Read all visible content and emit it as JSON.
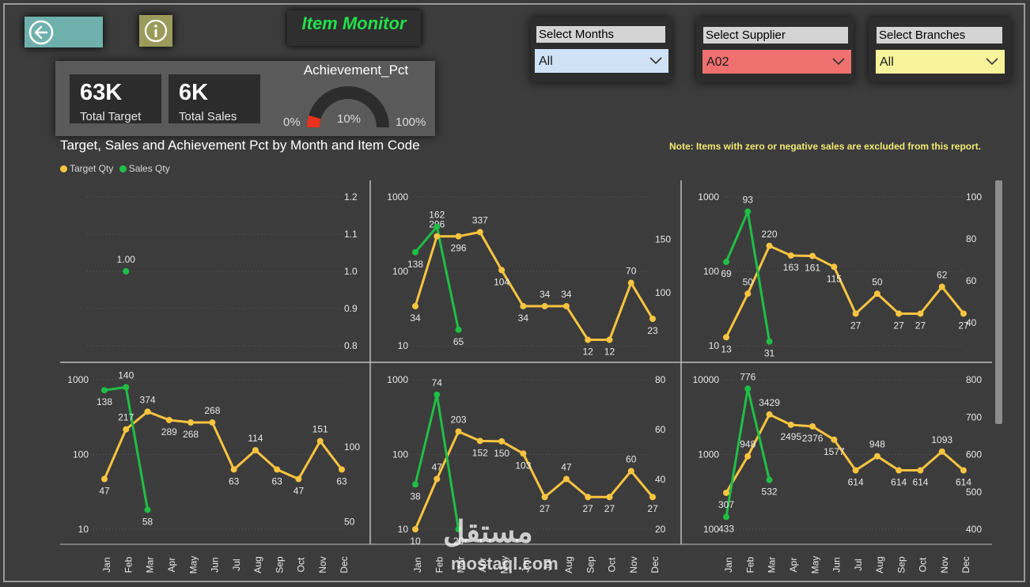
{
  "header": {
    "title": "Item Monitor",
    "back_icon": "back-arrow-icon",
    "info_icon": "info-icon"
  },
  "kpis": {
    "target_value": "63K",
    "target_label": "Total Target",
    "sales_value": "6K",
    "sales_label": "Total Sales"
  },
  "gauge": {
    "title": "Achievement_Pct",
    "min_label": "0%",
    "max_label": "100%",
    "value_label": "10%",
    "value": 0.0951
  },
  "slicers": {
    "months": {
      "label": "Select Months",
      "value": "All",
      "color": "#cfe2f6"
    },
    "supplier": {
      "label": "Select Supplier",
      "value": "A02",
      "color": "#f07070"
    },
    "branches": {
      "label": "Select Branches",
      "value": "All",
      "color": "#f7f39a"
    }
  },
  "chart_title": "Target, Sales and Achievement Pct by Month and Item Code",
  "note": "Note: Items with zero or negative sales are excluded from this report.",
  "legend": {
    "target": {
      "label": "Target Qty",
      "color": "#f9c440"
    },
    "sales": {
      "label": "Sales Qty",
      "color": "#1fbf45"
    }
  },
  "watermark": {
    "arabic": "مستقل",
    "latin": "mostaql.com"
  },
  "chart_data": {
    "type": "line",
    "months": [
      "Jan",
      "Feb",
      "Mar",
      "Apr",
      "May",
      "Jun",
      "Jul",
      "Aug",
      "Sep",
      "Oct",
      "Nov",
      "Dec"
    ],
    "panels": [
      {
        "left_axis": {
          "scale": "log",
          "ticks": []
        },
        "right_axis": {
          "scale": "linear",
          "min": 0.8,
          "max": 1.2,
          "ticks": [
            "0.8",
            "0.9",
            "1.0",
            "1.1",
            "1.2"
          ]
        },
        "target": [
          null,
          null,
          null,
          null,
          null,
          null,
          null,
          null,
          null,
          null,
          null,
          null
        ],
        "sales": [
          null,
          1.0,
          null,
          null,
          null,
          null,
          null,
          null,
          null,
          null,
          null,
          null
        ],
        "sales_labels": [
          null,
          "1.00",
          null,
          null,
          null,
          null,
          null,
          null,
          null,
          null,
          null,
          null
        ],
        "show_months": false
      },
      {
        "left_axis": {
          "scale": "log",
          "min": 10,
          "max": 1000,
          "ticks": [
            "10",
            "100",
            "1000"
          ]
        },
        "right_axis": {
          "scale": "linear",
          "min": 50,
          "max": 190,
          "ticks": [
            "100",
            "150"
          ]
        },
        "target": [
          34,
          296,
          296,
          337,
          104,
          34,
          34,
          34,
          12,
          12,
          70,
          23
        ],
        "target_labels": [
          "34",
          "296",
          "296",
          "337",
          "104",
          "34",
          "34",
          "34",
          "12",
          "12",
          "70",
          "23"
        ],
        "sales": [
          138,
          162,
          65,
          null,
          null,
          null,
          null,
          null,
          null,
          null,
          null,
          null
        ],
        "sales_labels": [
          "138",
          "162",
          "65",
          null,
          null,
          null,
          null,
          null,
          null,
          null,
          null,
          null
        ],
        "show_months": false
      },
      {
        "left_axis": {
          "scale": "log",
          "min": 10,
          "max": 1000,
          "ticks": [
            "10",
            "100",
            "1000"
          ]
        },
        "right_axis": {
          "scale": "linear",
          "min": 29,
          "max": 100,
          "ticks": [
            "40",
            "60",
            "80",
            "100"
          ]
        },
        "target": [
          13,
          50,
          220,
          163,
          161,
          115,
          27,
          50,
          27,
          27,
          62,
          27
        ],
        "target_labels": [
          "13",
          "50",
          "220",
          "163",
          "161",
          "115",
          "27",
          "50",
          "27",
          "27",
          "62",
          "27"
        ],
        "sales": [
          69,
          93,
          31,
          null,
          null,
          null,
          null,
          null,
          null,
          null,
          null,
          null
        ],
        "sales_labels": [
          "69",
          "93",
          "31",
          null,
          null,
          null,
          null,
          null,
          null,
          null,
          null,
          null
        ],
        "show_months": false
      },
      {
        "left_axis": {
          "scale": "log",
          "min": 10,
          "max": 1000,
          "ticks": [
            "10",
            "100",
            "1000"
          ]
        },
        "right_axis": {
          "scale": "linear",
          "min": 45,
          "max": 145,
          "ticks": [
            "50",
            "100"
          ]
        },
        "target": [
          47,
          217,
          374,
          289,
          268,
          268,
          63,
          114,
          63,
          47,
          151,
          63
        ],
        "target_labels": [
          "47",
          "217",
          "374",
          "289",
          "268",
          "268",
          "63",
          "114",
          "63",
          "47",
          "151",
          "63"
        ],
        "sales": [
          138,
          140,
          58,
          null,
          null,
          null,
          null,
          null,
          null,
          null,
          null,
          null
        ],
        "sales_labels": [
          "138",
          "140",
          "58",
          null,
          null,
          null,
          null,
          null,
          null,
          null,
          null,
          null
        ],
        "show_months": true
      },
      {
        "left_axis": {
          "scale": "log",
          "min": 10,
          "max": 1000,
          "ticks": [
            "10",
            "100",
            "1000"
          ]
        },
        "right_axis": {
          "scale": "linear",
          "min": 20,
          "max": 80,
          "ticks": [
            "20",
            "40",
            "60",
            "80"
          ]
        },
        "target": [
          10,
          47,
          203,
          152,
          150,
          103,
          27,
          47,
          27,
          27,
          60,
          27
        ],
        "target_labels": [
          "10",
          "47",
          "203",
          "152",
          "150",
          "103",
          "27",
          "47",
          "27",
          "27",
          "60",
          "27"
        ],
        "sales": [
          38,
          74,
          20,
          null,
          null,
          null,
          null,
          null,
          null,
          null,
          null,
          null
        ],
        "sales_labels": [
          "38",
          "74",
          "20",
          null,
          null,
          null,
          null,
          null,
          null,
          null,
          null,
          null
        ],
        "show_months": true
      },
      {
        "left_axis": {
          "scale": "log",
          "min": 100,
          "max": 10000,
          "ticks": [
            "100",
            "1000",
            "10000"
          ]
        },
        "right_axis": {
          "scale": "linear",
          "min": 400,
          "max": 800,
          "ticks": [
            "400",
            "500",
            "600",
            "700",
            "800"
          ]
        },
        "target": [
          307,
          948,
          3429,
          2495,
          2376,
          1577,
          614,
          948,
          614,
          614,
          1093,
          614
        ],
        "target_labels": [
          "307",
          "948",
          "3429",
          "2495",
          "2376",
          "1577",
          "614",
          "948",
          "614",
          "614",
          "1093",
          "614"
        ],
        "sales": [
          433,
          776,
          532,
          null,
          null,
          null,
          null,
          null,
          null,
          null,
          null,
          null
        ],
        "sales_labels": [
          "433",
          "776",
          "532",
          null,
          null,
          null,
          null,
          null,
          null,
          null,
          null,
          null
        ],
        "show_months": true
      }
    ]
  }
}
